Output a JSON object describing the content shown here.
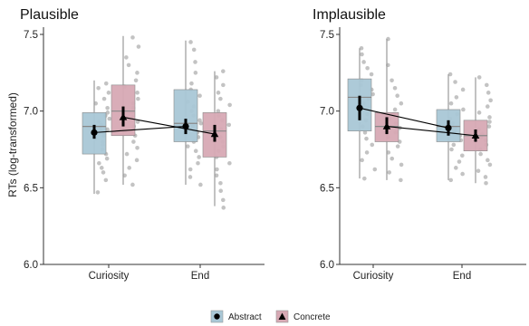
{
  "chart_data": [
    {
      "type": "box-dot",
      "title": "Plausible",
      "ylabel": "RTs (log-transformed)",
      "xlabel": "",
      "ylim": [
        6.0,
        7.5
      ],
      "yticks": [
        "6.0",
        "6.5",
        "7.0",
        "7.5"
      ],
      "categories": [
        "Curiosity",
        "End"
      ],
      "grid": false,
      "series": [
        {
          "name": "Abstract",
          "color": "#a9c7d6",
          "marker": "circle",
          "values": [
            6.86,
            6.9
          ],
          "ci": [
            [
              6.82,
              6.91
            ],
            [
              6.85,
              6.95
            ]
          ],
          "box": [
            {
              "q1": 6.72,
              "median": 6.9,
              "q3": 6.99,
              "min": 6.46,
              "max": 7.2
            },
            {
              "q1": 6.8,
              "median": 6.92,
              "q3": 7.14,
              "min": 6.52,
              "max": 7.46
            }
          ],
          "points": [
            [
              6.47,
              6.55,
              6.6,
              6.63,
              6.66,
              6.69,
              6.72,
              6.75,
              6.78,
              6.8,
              6.82,
              6.84,
              6.85,
              6.87,
              6.88,
              6.9,
              6.91,
              6.93,
              6.95,
              6.97,
              6.99,
              7.02,
              7.05,
              7.08,
              7.12,
              7.15,
              7.18
            ],
            [
              6.52,
              6.57,
              6.62,
              6.66,
              6.7,
              6.74,
              6.77,
              6.8,
              6.83,
              6.86,
              6.88,
              6.9,
              6.92,
              6.94,
              6.97,
              7.0,
              7.03,
              7.06,
              7.1,
              7.14,
              7.18,
              7.25,
              7.32,
              7.4,
              7.45
            ]
          ]
        },
        {
          "name": "Concrete",
          "color": "#d7a9b4",
          "marker": "triangle",
          "values": [
            6.96,
            6.85
          ],
          "ci": [
            [
              6.9,
              7.03
            ],
            [
              6.8,
              6.91
            ]
          ],
          "box": [
            {
              "q1": 6.84,
              "median": 7.0,
              "q3": 7.17,
              "min": 6.52,
              "max": 7.49
            },
            {
              "q1": 6.7,
              "median": 6.87,
              "q3": 6.99,
              "min": 6.38,
              "max": 7.26
            }
          ],
          "points": [
            [
              6.52,
              6.58,
              6.63,
              6.68,
              6.72,
              6.76,
              6.8,
              6.84,
              6.87,
              6.9,
              6.93,
              6.96,
              6.99,
              7.02,
              7.05,
              7.08,
              7.12,
              7.16,
              7.2,
              7.25,
              7.3,
              7.35,
              7.42,
              7.48
            ],
            [
              6.37,
              6.42,
              6.48,
              6.53,
              6.58,
              6.62,
              6.66,
              6.7,
              6.74,
              6.77,
              6.8,
              6.83,
              6.86,
              6.88,
              6.91,
              6.94,
              6.97,
              7.0,
              7.04,
              7.08,
              7.12,
              7.17,
              7.22,
              7.26
            ]
          ]
        }
      ]
    },
    {
      "type": "box-dot",
      "title": "Implausible",
      "ylabel": "",
      "xlabel": "",
      "ylim": [
        6.0,
        7.5
      ],
      "yticks": [
        "6.0",
        "6.5",
        "7.0",
        "7.5"
      ],
      "categories": [
        "Curiosity",
        "End"
      ],
      "grid": false,
      "series": [
        {
          "name": "Abstract",
          "color": "#a9c7d6",
          "marker": "circle",
          "values": [
            7.02,
            6.89
          ],
          "ci": [
            [
              6.94,
              7.1
            ],
            [
              6.84,
              6.94
            ]
          ],
          "box": [
            {
              "q1": 6.87,
              "median": 7.09,
              "q3": 7.21,
              "min": 6.56,
              "max": 7.41
            },
            {
              "q1": 6.8,
              "median": 6.9,
              "q3": 7.01,
              "min": 6.55,
              "max": 7.24
            }
          ],
          "points": [
            [
              6.56,
              6.62,
              6.68,
              6.73,
              6.78,
              6.82,
              6.86,
              6.9,
              6.94,
              6.98,
              7.02,
              7.05,
              7.08,
              7.11,
              7.14,
              7.17,
              7.2,
              7.24,
              7.28,
              7.32,
              7.37,
              7.41
            ],
            [
              6.55,
              6.59,
              6.63,
              6.67,
              6.71,
              6.75,
              6.78,
              6.81,
              6.84,
              6.87,
              6.89,
              6.92,
              6.95,
              6.98,
              7.01,
              7.05,
              7.09,
              7.14,
              7.19,
              7.24
            ]
          ]
        },
        {
          "name": "Concrete",
          "color": "#d7a9b4",
          "marker": "triangle",
          "values": [
            6.9,
            6.84
          ],
          "ci": [
            [
              6.85,
              6.96
            ],
            [
              6.8,
              6.88
            ]
          ],
          "box": [
            {
              "q1": 6.8,
              "median": 6.9,
              "q3": 6.99,
              "min": 6.55,
              "max": 7.47
            },
            {
              "q1": 6.74,
              "median": 6.84,
              "q3": 6.94,
              "min": 6.53,
              "max": 7.22
            }
          ],
          "points": [
            [
              6.55,
              6.6,
              6.65,
              6.69,
              6.73,
              6.77,
              6.8,
              6.83,
              6.86,
              6.89,
              6.92,
              6.95,
              6.98,
              7.01,
              7.05,
              7.1,
              7.15,
              7.2,
              7.3,
              7.47
            ],
            [
              6.53,
              6.57,
              6.61,
              6.65,
              6.68,
              6.72,
              6.75,
              6.78,
              6.81,
              6.83,
              6.85,
              6.88,
              6.9,
              6.93,
              6.96,
              6.99,
              7.03,
              7.07,
              7.12,
              7.17,
              7.22
            ]
          ]
        }
      ]
    }
  ],
  "legend": {
    "position": "bottom",
    "items": [
      {
        "label": "Abstract",
        "color": "#a9c7d6",
        "marker": "circle"
      },
      {
        "label": "Concrete",
        "color": "#d7a9b4",
        "marker": "triangle"
      }
    ]
  }
}
